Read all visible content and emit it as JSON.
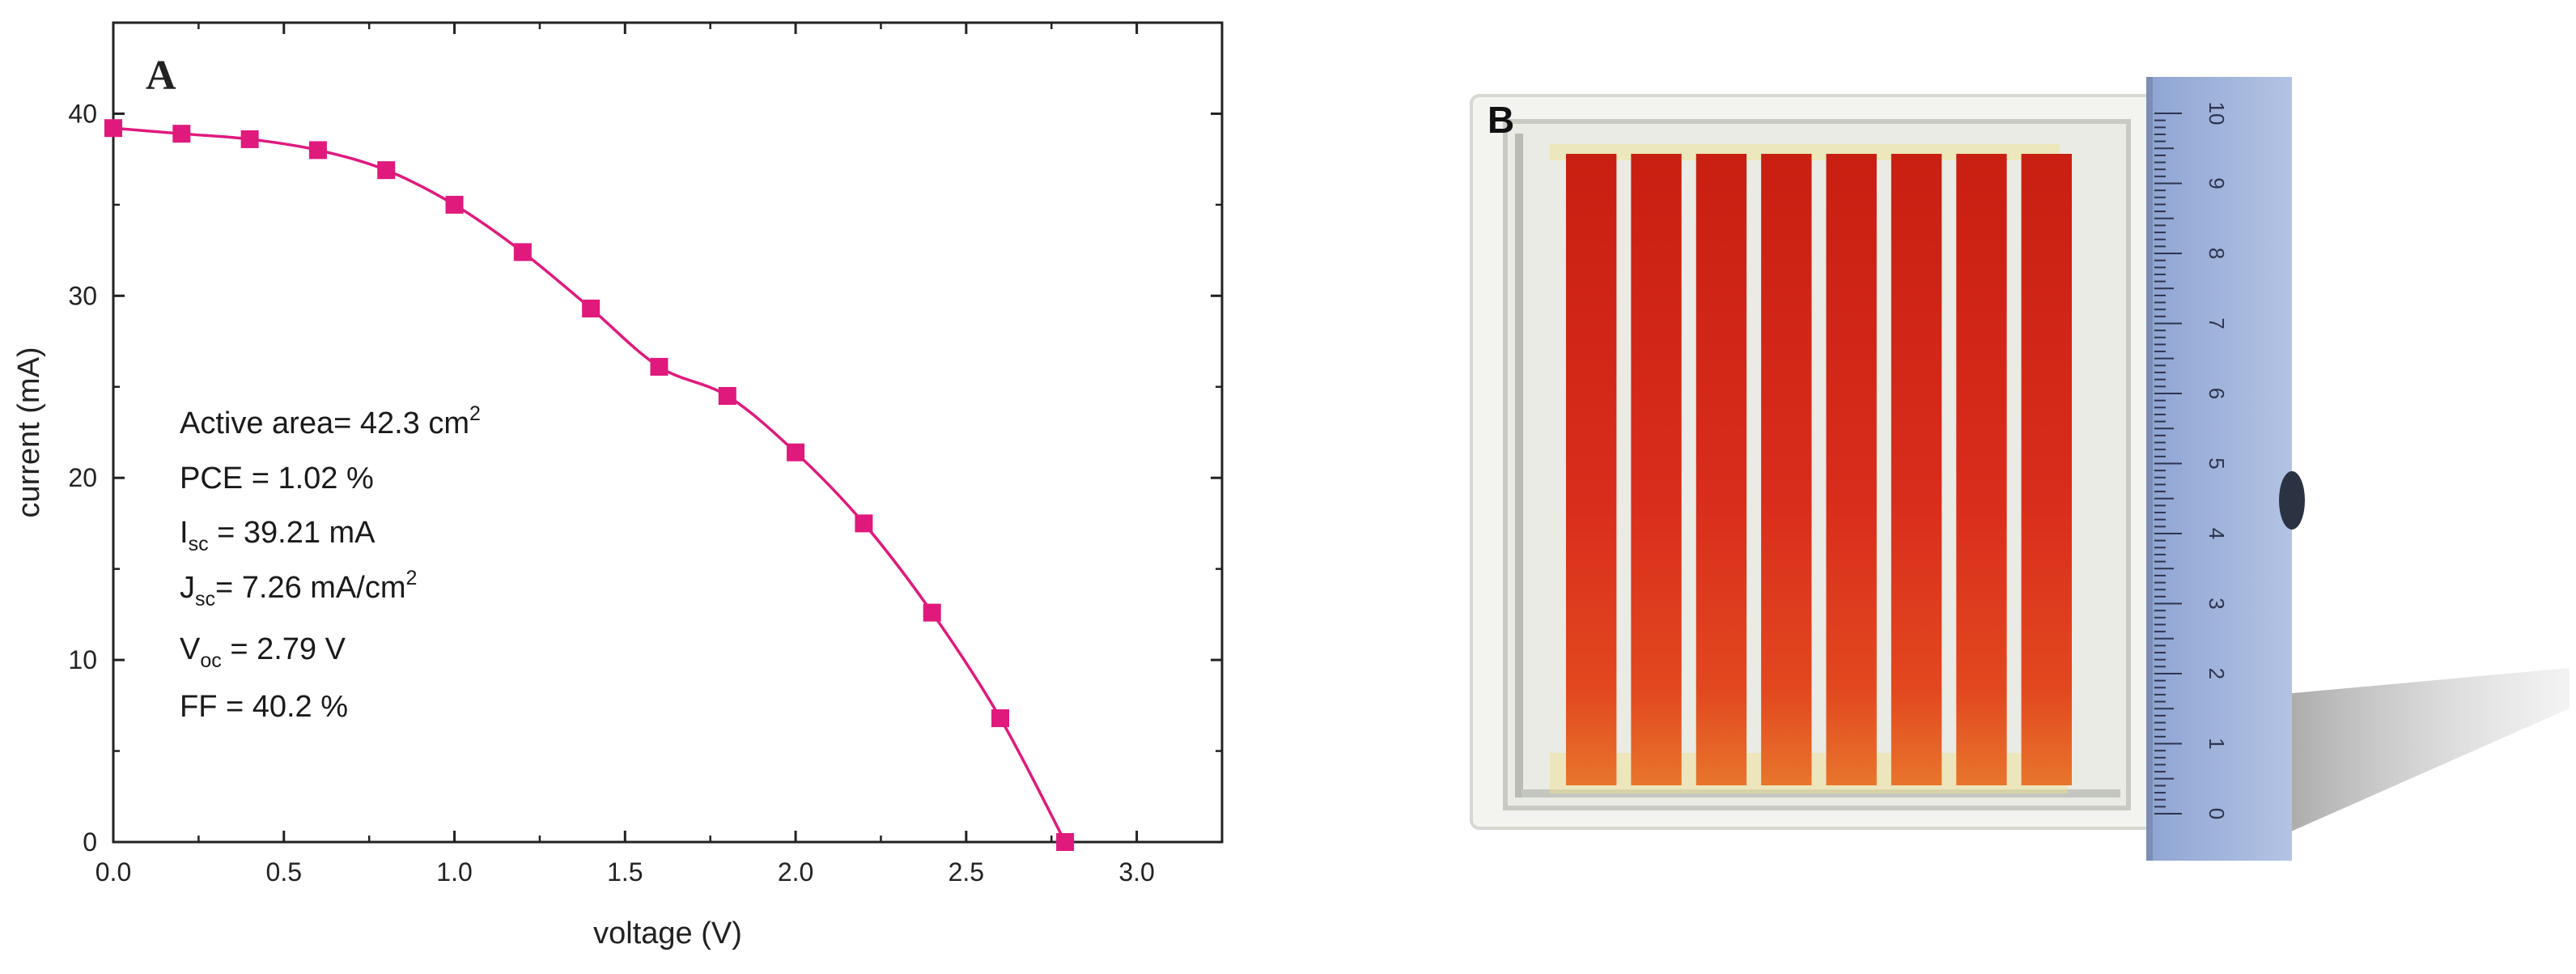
{
  "panel_a": {
    "letter": "A",
    "chart_data": {
      "type": "line",
      "xlabel": "voltage (V)",
      "ylabel": "current (mA)",
      "xlim": [
        0.0,
        3.25
      ],
      "ylim": [
        0,
        45
      ],
      "xticks": [
        "0.0",
        "0.5",
        "1.0",
        "1.5",
        "2.0",
        "2.5",
        "3.0"
      ],
      "yticks": [
        "0",
        "10",
        "20",
        "30",
        "40"
      ],
      "grid": false,
      "series": [
        {
          "color": "#e0197d",
          "marker": "square",
          "x": [
            0.0,
            0.2,
            0.4,
            0.6,
            0.8,
            1.0,
            1.2,
            1.4,
            1.6,
            1.8,
            2.0,
            2.2,
            2.4,
            2.6,
            2.79
          ],
          "y": [
            39.21,
            38.9,
            38.6,
            38.0,
            36.9,
            35.0,
            32.4,
            29.3,
            26.1,
            24.5,
            21.4,
            17.5,
            12.6,
            6.8,
            0.0
          ]
        }
      ]
    },
    "annotations": {
      "area_label": "Active area= 42.3 cm",
      "area_sup": "2",
      "pce": "PCE = 1.02 %",
      "isc_symbol": "I",
      "isc_sub": "sc",
      "isc_value": " = 39.21 mA",
      "jsc_symbol": "J",
      "jsc_sub": "sc",
      "jsc_value": "= 7.26 mA/cm",
      "jsc_sup": "2",
      "voc_symbol": "V",
      "voc_sub": "oc",
      "voc_value": " = 2.79 V",
      "ff": "FF = 40.2 %"
    }
  },
  "panel_b": {
    "letter": "B",
    "module_strip_count": 8,
    "ruler_labels": [
      "0",
      "1",
      "2",
      "3",
      "4",
      "5",
      "6",
      "7",
      "8",
      "9",
      "10"
    ],
    "colors": {
      "dye_red": "#d4261a",
      "ruler_blue": "#9fb3da",
      "glass": "#eef0ec"
    }
  }
}
